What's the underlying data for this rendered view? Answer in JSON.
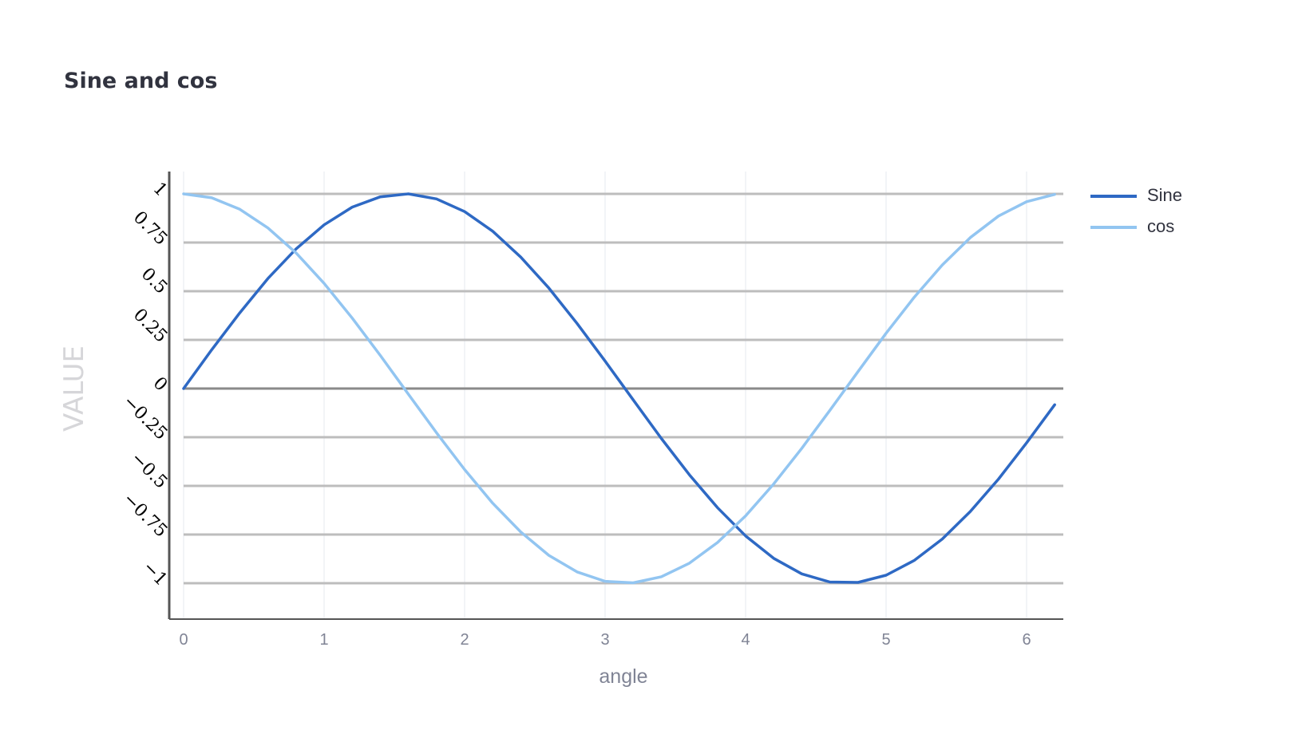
{
  "chart_data": {
    "type": "line",
    "title": "Sine and cos",
    "xlabel": "angle",
    "ylabel": "VALUE",
    "xlim": [
      -0.1,
      6.28
    ],
    "ylim": [
      -1.18,
      1.1
    ],
    "xticks": [
      0,
      1,
      2,
      3,
      4,
      5,
      6
    ],
    "yticks": [
      1,
      0.75,
      0.5,
      0.25,
      0,
      -0.25,
      -0.5,
      -0.75,
      -1
    ],
    "ytick_labels": [
      "1",
      "0.75",
      "0.5",
      "0.25",
      "0",
      "−0.25",
      "−0.5",
      "−0.75",
      "−1"
    ],
    "grid": true,
    "legend_position": "top-right",
    "x": [
      0,
      0.2,
      0.4,
      0.6,
      0.8,
      1.0,
      1.2,
      1.4,
      1.6,
      1.8,
      2.0,
      2.2,
      2.4,
      2.6,
      2.8,
      3.0,
      3.2,
      3.4,
      3.6,
      3.8,
      4.0,
      4.2,
      4.4,
      4.6,
      4.8,
      5.0,
      5.2,
      5.4,
      5.6,
      5.8,
      6.0,
      6.2
    ],
    "series": [
      {
        "name": "Sine",
        "color": "#2e69c4",
        "values": [
          0,
          0.199,
          0.389,
          0.565,
          0.717,
          0.841,
          0.932,
          0.985,
          1.0,
          0.974,
          0.909,
          0.808,
          0.675,
          0.516,
          0.335,
          0.141,
          -0.058,
          -0.256,
          -0.443,
          -0.612,
          -0.757,
          -0.872,
          -0.952,
          -0.994,
          -0.996,
          -0.959,
          -0.883,
          -0.773,
          -0.631,
          -0.465,
          -0.279,
          -0.083
        ]
      },
      {
        "name": "cos",
        "color": "#92c5f1",
        "values": [
          1.0,
          0.98,
          0.921,
          0.825,
          0.697,
          0.54,
          0.362,
          0.17,
          -0.029,
          -0.227,
          -0.416,
          -0.589,
          -0.737,
          -0.857,
          -0.942,
          -0.99,
          -0.998,
          -0.967,
          -0.897,
          -0.791,
          -0.654,
          -0.49,
          -0.307,
          -0.112,
          0.087,
          0.284,
          0.469,
          0.635,
          0.776,
          0.886,
          0.96,
          0.997
        ]
      }
    ]
  },
  "colors": {
    "title": "#31333f",
    "gridline_major": "#bdbdbd",
    "gridline_minor": "#e6e9ef",
    "axis": "#555555",
    "tick_text": "#808495",
    "ylabel": "#d6d6d9"
  }
}
